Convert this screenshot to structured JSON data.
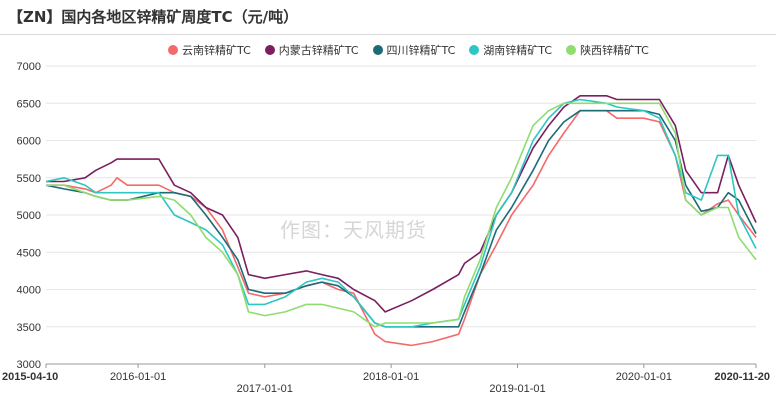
{
  "header": {
    "title": "【ZN】国内各地区锌精矿周度TC（元/吨）"
  },
  "watermark": "作图：天风期货",
  "chart_data": {
    "type": "line",
    "title": "【ZN】国内各地区锌精矿周度TC（元/吨）",
    "xlabel": "",
    "ylabel": "",
    "ylim": [
      3000,
      7000
    ],
    "yticks": [
      3000,
      3500,
      4000,
      4500,
      5000,
      5500,
      6000,
      6500,
      7000
    ],
    "xlim": [
      "2015-04-10",
      "2020-11-20"
    ],
    "xticks": [
      "2015-04-10",
      "2016-01-01",
      "2017-01-01",
      "2018-01-01",
      "2019-01-01",
      "2020-01-01",
      "2020-11-20"
    ],
    "grid": true,
    "legend_position": "top",
    "series": [
      {
        "name": "云南锌精矿TC",
        "color": "#f46a6a",
        "points": [
          [
            "2015-04-10",
            5400
          ],
          [
            "2015-06-01",
            5400
          ],
          [
            "2015-08-01",
            5350
          ],
          [
            "2015-09-01",
            5300
          ],
          [
            "2015-10-15",
            5400
          ],
          [
            "2015-11-01",
            5500
          ],
          [
            "2015-12-01",
            5400
          ],
          [
            "2016-03-01",
            5400
          ],
          [
            "2016-04-15",
            5300
          ],
          [
            "2016-06-01",
            5250
          ],
          [
            "2016-07-15",
            5100
          ],
          [
            "2016-09-01",
            4800
          ],
          [
            "2016-10-15",
            4300
          ],
          [
            "2016-11-15",
            3950
          ],
          [
            "2017-01-01",
            3900
          ],
          [
            "2017-03-01",
            3950
          ],
          [
            "2017-05-01",
            4050
          ],
          [
            "2017-06-15",
            4100
          ],
          [
            "2017-08-01",
            4000
          ],
          [
            "2017-09-15",
            3950
          ],
          [
            "2017-11-15",
            3400
          ],
          [
            "2017-12-15",
            3300
          ],
          [
            "2018-03-01",
            3250
          ],
          [
            "2018-05-01",
            3300
          ],
          [
            "2018-07-15",
            3400
          ],
          [
            "2018-08-01",
            3600
          ],
          [
            "2018-09-15",
            4200
          ],
          [
            "2018-11-01",
            4600
          ],
          [
            "2018-12-15",
            5000
          ],
          [
            "2019-02-15",
            5400
          ],
          [
            "2019-04-01",
            5800
          ],
          [
            "2019-05-15",
            6100
          ],
          [
            "2019-07-01",
            6400
          ],
          [
            "2019-09-15",
            6400
          ],
          [
            "2019-10-15",
            6300
          ],
          [
            "2020-01-01",
            6300
          ],
          [
            "2020-02-15",
            6250
          ],
          [
            "2020-04-01",
            5800
          ],
          [
            "2020-05-01",
            5200
          ],
          [
            "2020-06-15",
            5000
          ],
          [
            "2020-08-01",
            5150
          ],
          [
            "2020-09-01",
            5200
          ],
          [
            "2020-10-01",
            5000
          ],
          [
            "2020-11-20",
            4700
          ]
        ]
      },
      {
        "name": "内蒙古锌精矿TC",
        "color": "#7a1f5f",
        "points": [
          [
            "2015-04-10",
            5450
          ],
          [
            "2015-06-01",
            5450
          ],
          [
            "2015-08-01",
            5500
          ],
          [
            "2015-09-01",
            5600
          ],
          [
            "2015-10-15",
            5700
          ],
          [
            "2015-11-01",
            5750
          ],
          [
            "2015-12-01",
            5750
          ],
          [
            "2016-03-01",
            5750
          ],
          [
            "2016-04-15",
            5400
          ],
          [
            "2016-06-01",
            5300
          ],
          [
            "2016-07-15",
            5100
          ],
          [
            "2016-09-01",
            5000
          ],
          [
            "2016-10-15",
            4700
          ],
          [
            "2016-11-15",
            4200
          ],
          [
            "2017-01-01",
            4150
          ],
          [
            "2017-03-01",
            4200
          ],
          [
            "2017-05-01",
            4250
          ],
          [
            "2017-06-15",
            4200
          ],
          [
            "2017-08-01",
            4150
          ],
          [
            "2017-09-15",
            4000
          ],
          [
            "2017-11-15",
            3850
          ],
          [
            "2017-12-15",
            3700
          ],
          [
            "2018-03-01",
            3850
          ],
          [
            "2018-05-01",
            4000
          ],
          [
            "2018-07-15",
            4200
          ],
          [
            "2018-08-01",
            4350
          ],
          [
            "2018-09-15",
            4500
          ],
          [
            "2018-11-01",
            5000
          ],
          [
            "2018-12-15",
            5300
          ],
          [
            "2019-02-15",
            5900
          ],
          [
            "2019-04-01",
            6200
          ],
          [
            "2019-05-15",
            6450
          ],
          [
            "2019-07-01",
            6600
          ],
          [
            "2019-09-15",
            6600
          ],
          [
            "2019-10-15",
            6550
          ],
          [
            "2020-01-01",
            6550
          ],
          [
            "2020-02-15",
            6550
          ],
          [
            "2020-04-01",
            6200
          ],
          [
            "2020-05-01",
            5600
          ],
          [
            "2020-06-15",
            5300
          ],
          [
            "2020-08-01",
            5300
          ],
          [
            "2020-09-01",
            5800
          ],
          [
            "2020-10-01",
            5400
          ],
          [
            "2020-11-20",
            4900
          ]
        ]
      },
      {
        "name": "四川锌精矿TC",
        "color": "#1d6b77",
        "points": [
          [
            "2015-04-10",
            5400
          ],
          [
            "2015-06-01",
            5350
          ],
          [
            "2015-08-01",
            5300
          ],
          [
            "2015-09-01",
            5250
          ],
          [
            "2015-10-15",
            5200
          ],
          [
            "2015-11-01",
            5200
          ],
          [
            "2015-12-01",
            5200
          ],
          [
            "2016-03-01",
            5300
          ],
          [
            "2016-04-15",
            5300
          ],
          [
            "2016-06-01",
            5250
          ],
          [
            "2016-07-15",
            5000
          ],
          [
            "2016-09-01",
            4700
          ],
          [
            "2016-10-15",
            4400
          ],
          [
            "2016-11-15",
            4000
          ],
          [
            "2017-01-01",
            3950
          ],
          [
            "2017-03-01",
            3950
          ],
          [
            "2017-05-01",
            4050
          ],
          [
            "2017-06-15",
            4100
          ],
          [
            "2017-08-01",
            4050
          ],
          [
            "2017-09-15",
            3900
          ],
          [
            "2017-11-15",
            3550
          ],
          [
            "2017-12-15",
            3500
          ],
          [
            "2018-03-01",
            3500
          ],
          [
            "2018-05-01",
            3500
          ],
          [
            "2018-07-15",
            3500
          ],
          [
            "2018-08-01",
            3700
          ],
          [
            "2018-09-15",
            4200
          ],
          [
            "2018-11-01",
            4800
          ],
          [
            "2018-12-15",
            5100
          ],
          [
            "2019-02-15",
            5600
          ],
          [
            "2019-04-01",
            6000
          ],
          [
            "2019-05-15",
            6250
          ],
          [
            "2019-07-01",
            6400
          ],
          [
            "2019-09-15",
            6400
          ],
          [
            "2019-10-15",
            6400
          ],
          [
            "2020-01-01",
            6400
          ],
          [
            "2020-02-15",
            6350
          ],
          [
            "2020-04-01",
            6000
          ],
          [
            "2020-05-01",
            5400
          ],
          [
            "2020-06-15",
            5050
          ],
          [
            "2020-08-01",
            5100
          ],
          [
            "2020-09-01",
            5300
          ],
          [
            "2020-10-01",
            5200
          ],
          [
            "2020-11-20",
            4750
          ]
        ]
      },
      {
        "name": "湖南锌精矿TC",
        "color": "#2cc7c2",
        "points": [
          [
            "2015-04-10",
            5450
          ],
          [
            "2015-06-01",
            5500
          ],
          [
            "2015-08-01",
            5400
          ],
          [
            "2015-09-01",
            5300
          ],
          [
            "2015-10-15",
            5300
          ],
          [
            "2015-11-01",
            5300
          ],
          [
            "2015-12-01",
            5300
          ],
          [
            "2016-03-01",
            5300
          ],
          [
            "2016-04-15",
            5000
          ],
          [
            "2016-06-01",
            4900
          ],
          [
            "2016-07-15",
            4800
          ],
          [
            "2016-09-01",
            4600
          ],
          [
            "2016-10-15",
            4200
          ],
          [
            "2016-11-15",
            3800
          ],
          [
            "2017-01-01",
            3800
          ],
          [
            "2017-03-01",
            3900
          ],
          [
            "2017-05-01",
            4100
          ],
          [
            "2017-06-15",
            4150
          ],
          [
            "2017-08-01",
            4100
          ],
          [
            "2017-09-15",
            3900
          ],
          [
            "2017-11-15",
            3550
          ],
          [
            "2017-12-15",
            3500
          ],
          [
            "2018-03-01",
            3500
          ],
          [
            "2018-05-01",
            3550
          ],
          [
            "2018-07-15",
            3600
          ],
          [
            "2018-08-01",
            3800
          ],
          [
            "2018-09-15",
            4300
          ],
          [
            "2018-11-01",
            5000
          ],
          [
            "2018-12-15",
            5300
          ],
          [
            "2019-02-15",
            6000
          ],
          [
            "2019-04-01",
            6300
          ],
          [
            "2019-05-15",
            6500
          ],
          [
            "2019-07-01",
            6550
          ],
          [
            "2019-09-15",
            6500
          ],
          [
            "2019-10-15",
            6450
          ],
          [
            "2020-01-01",
            6400
          ],
          [
            "2020-02-15",
            6300
          ],
          [
            "2020-04-01",
            5800
          ],
          [
            "2020-05-01",
            5300
          ],
          [
            "2020-06-15",
            5200
          ],
          [
            "2020-08-01",
            5800
          ],
          [
            "2020-09-01",
            5800
          ],
          [
            "2020-10-01",
            5000
          ],
          [
            "2020-11-20",
            4550
          ]
        ]
      },
      {
        "name": "陕西锌精矿TC",
        "color": "#8fdc6f",
        "points": [
          [
            "2015-04-10",
            5400
          ],
          [
            "2015-06-01",
            5400
          ],
          [
            "2015-08-01",
            5300
          ],
          [
            "2015-09-01",
            5250
          ],
          [
            "2015-10-15",
            5200
          ],
          [
            "2015-11-01",
            5200
          ],
          [
            "2015-12-01",
            5200
          ],
          [
            "2016-03-01",
            5250
          ],
          [
            "2016-04-15",
            5200
          ],
          [
            "2016-06-01",
            5000
          ],
          [
            "2016-07-15",
            4700
          ],
          [
            "2016-09-01",
            4500
          ],
          [
            "2016-10-15",
            4200
          ],
          [
            "2016-11-15",
            3700
          ],
          [
            "2017-01-01",
            3650
          ],
          [
            "2017-03-01",
            3700
          ],
          [
            "2017-05-01",
            3800
          ],
          [
            "2017-06-15",
            3800
          ],
          [
            "2017-08-01",
            3750
          ],
          [
            "2017-09-15",
            3700
          ],
          [
            "2017-11-15",
            3500
          ],
          [
            "2017-12-15",
            3550
          ],
          [
            "2018-03-01",
            3550
          ],
          [
            "2018-05-01",
            3550
          ],
          [
            "2018-07-15",
            3600
          ],
          [
            "2018-08-01",
            3900
          ],
          [
            "2018-09-15",
            4400
          ],
          [
            "2018-11-01",
            5100
          ],
          [
            "2018-12-15",
            5500
          ],
          [
            "2019-02-15",
            6200
          ],
          [
            "2019-04-01",
            6400
          ],
          [
            "2019-05-15",
            6500
          ],
          [
            "2019-07-01",
            6500
          ],
          [
            "2019-09-15",
            6500
          ],
          [
            "2019-10-15",
            6500
          ],
          [
            "2020-01-01",
            6500
          ],
          [
            "2020-02-15",
            6500
          ],
          [
            "2020-04-01",
            6100
          ],
          [
            "2020-05-01",
            5200
          ],
          [
            "2020-06-15",
            5000
          ],
          [
            "2020-08-01",
            5100
          ],
          [
            "2020-09-01",
            5100
          ],
          [
            "2020-10-01",
            4700
          ],
          [
            "2020-11-20",
            4400
          ]
        ]
      }
    ]
  }
}
